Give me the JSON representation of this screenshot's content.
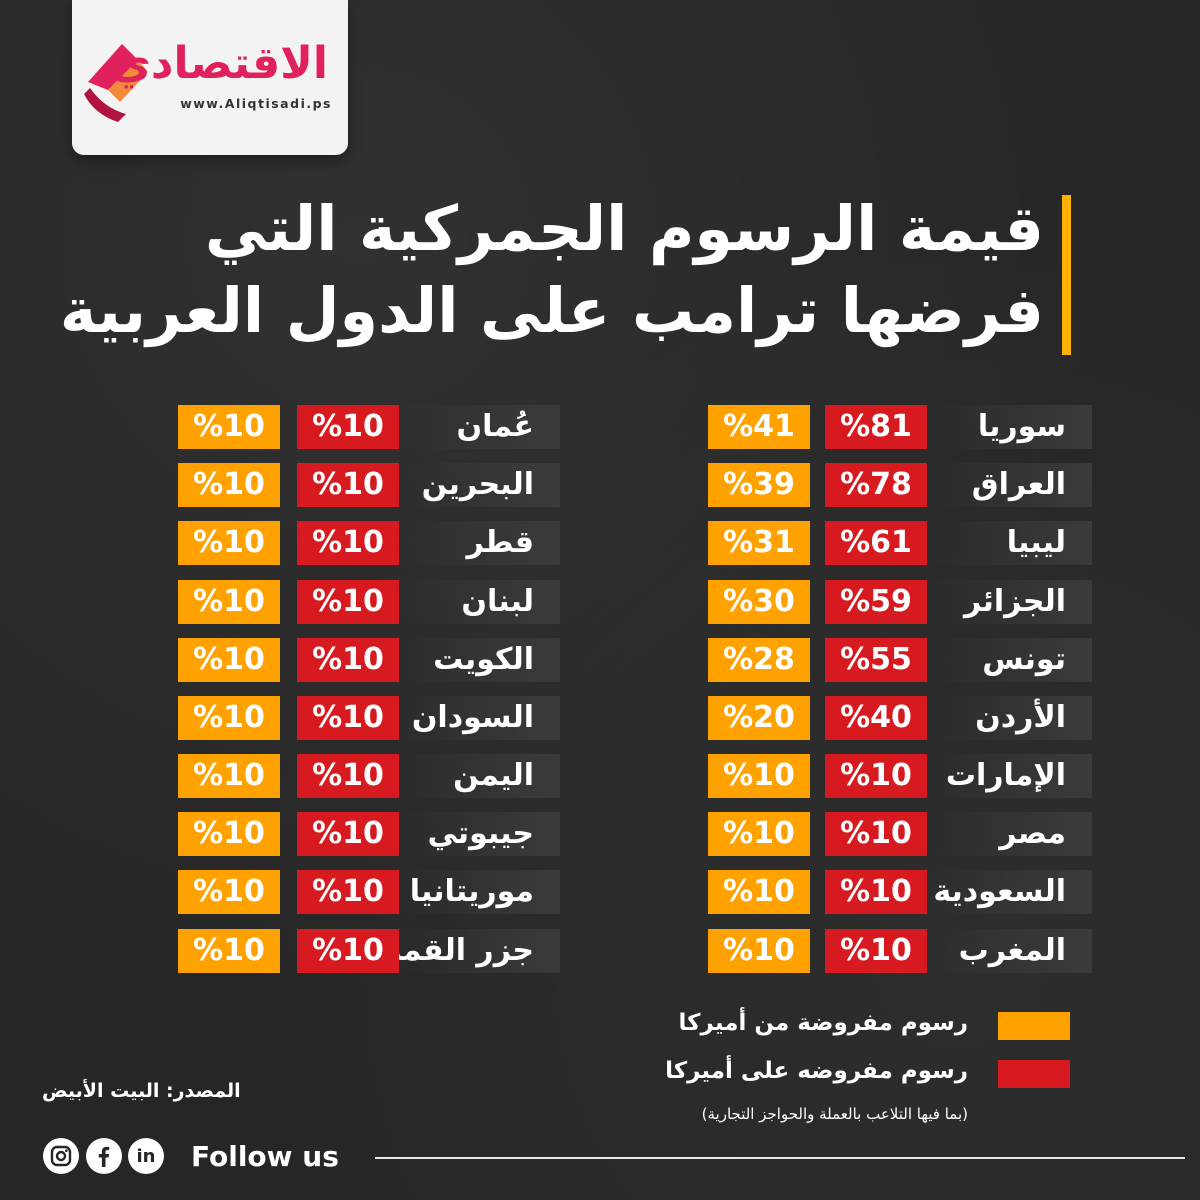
{
  "brand": {
    "name": "الاقتصادي",
    "url": "www.Aliqtisadi.ps",
    "colors": {
      "primary": "#e0215b",
      "secondary": "#f28a3c"
    }
  },
  "title": {
    "line1": "قيمة الرسوم الجمركية التي",
    "line2": "فرضها ترامب على الدول العربية"
  },
  "colors": {
    "us_imposed": "#ffa200",
    "on_us": "#d61a1f",
    "accent": "#ffb000"
  },
  "table_right": [
    {
      "country": "سوريا",
      "on_us": "%81",
      "us_imposed": "%41"
    },
    {
      "country": "العراق",
      "on_us": "%78",
      "us_imposed": "%39"
    },
    {
      "country": "ليبيا",
      "on_us": "%61",
      "us_imposed": "%31"
    },
    {
      "country": "الجزائر",
      "on_us": "%59",
      "us_imposed": "%30"
    },
    {
      "country": "تونس",
      "on_us": "%55",
      "us_imposed": "%28"
    },
    {
      "country": "الأردن",
      "on_us": "%40",
      "us_imposed": "%20"
    },
    {
      "country": "الإمارات",
      "on_us": "%10",
      "us_imposed": "%10"
    },
    {
      "country": "مصر",
      "on_us": "%10",
      "us_imposed": "%10"
    },
    {
      "country": "السعودية",
      "on_us": "%10",
      "us_imposed": "%10"
    },
    {
      "country": "المغرب",
      "on_us": "%10",
      "us_imposed": "%10"
    }
  ],
  "table_left": [
    {
      "country": "عُمان",
      "on_us": "%10",
      "us_imposed": "%10"
    },
    {
      "country": "البحرين",
      "on_us": "%10",
      "us_imposed": "%10"
    },
    {
      "country": "قطر",
      "on_us": "%10",
      "us_imposed": "%10"
    },
    {
      "country": "لبنان",
      "on_us": "%10",
      "us_imposed": "%10"
    },
    {
      "country": "الكويت",
      "on_us": "%10",
      "us_imposed": "%10"
    },
    {
      "country": "السودان",
      "on_us": "%10",
      "us_imposed": "%10"
    },
    {
      "country": "اليمن",
      "on_us": "%10",
      "us_imposed": "%10"
    },
    {
      "country": "جيبوتي",
      "on_us": "%10",
      "us_imposed": "%10"
    },
    {
      "country": "موريتانيا",
      "on_us": "%10",
      "us_imposed": "%10"
    },
    {
      "country": "جزر القمر",
      "on_us": "%10",
      "us_imposed": "%10"
    }
  ],
  "legend": {
    "us_imposed_label": "رسوم مفروضة من أميركا",
    "on_us_label": "رسوم مفروضه على أميركا",
    "note": "(بما فيها التلاعب بالعملة والحواجز التجارية)"
  },
  "footer": {
    "source": "المصدر: البيت الأبيض",
    "follow": "Follow us",
    "social": [
      {
        "icon": "instagram-icon"
      },
      {
        "icon": "facebook-icon"
      },
      {
        "icon": "linkedin-icon",
        "glyph": "in"
      }
    ]
  }
}
